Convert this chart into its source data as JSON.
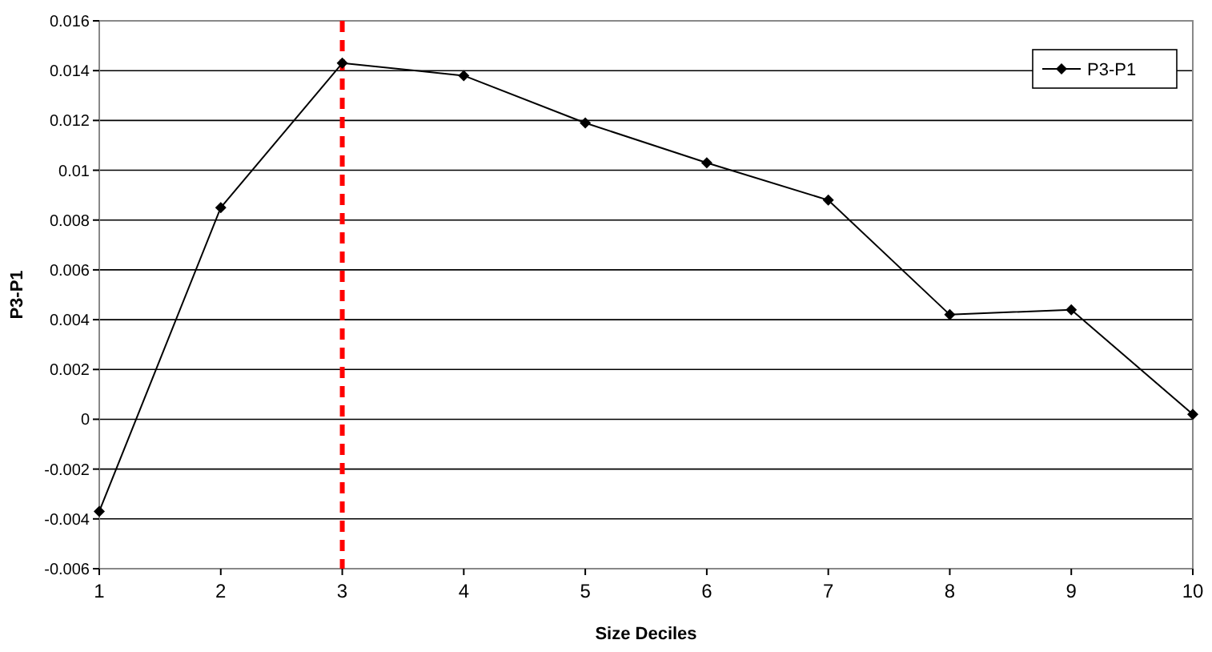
{
  "chart_data": {
    "type": "line",
    "xlabel": "Size Deciles",
    "ylabel": "P3-P1",
    "x": [
      1,
      2,
      3,
      4,
      5,
      6,
      7,
      8,
      9,
      10
    ],
    "series": [
      {
        "name": "P3-P1",
        "color": "#000000",
        "values": [
          -0.0037,
          0.0085,
          0.0143,
          0.0138,
          0.0119,
          0.0103,
          0.0088,
          0.0042,
          0.0044,
          0.0002
        ]
      }
    ],
    "xlim": [
      1,
      10
    ],
    "xticks": [
      1,
      2,
      3,
      4,
      5,
      6,
      7,
      8,
      9,
      10
    ],
    "ylim": [
      -0.006,
      0.016
    ],
    "yticks": [
      -0.006,
      -0.004,
      -0.002,
      0,
      0.002,
      0.004,
      0.006,
      0.008,
      0.01,
      0.012,
      0.014,
      0.016
    ],
    "grid": "y",
    "legend": "top right",
    "marker": "diamond",
    "line_style": "solid",
    "ref_lines": [
      {
        "axis": "x",
        "value": 3,
        "color": "#ff0000",
        "line_style": "dashed"
      }
    ]
  }
}
